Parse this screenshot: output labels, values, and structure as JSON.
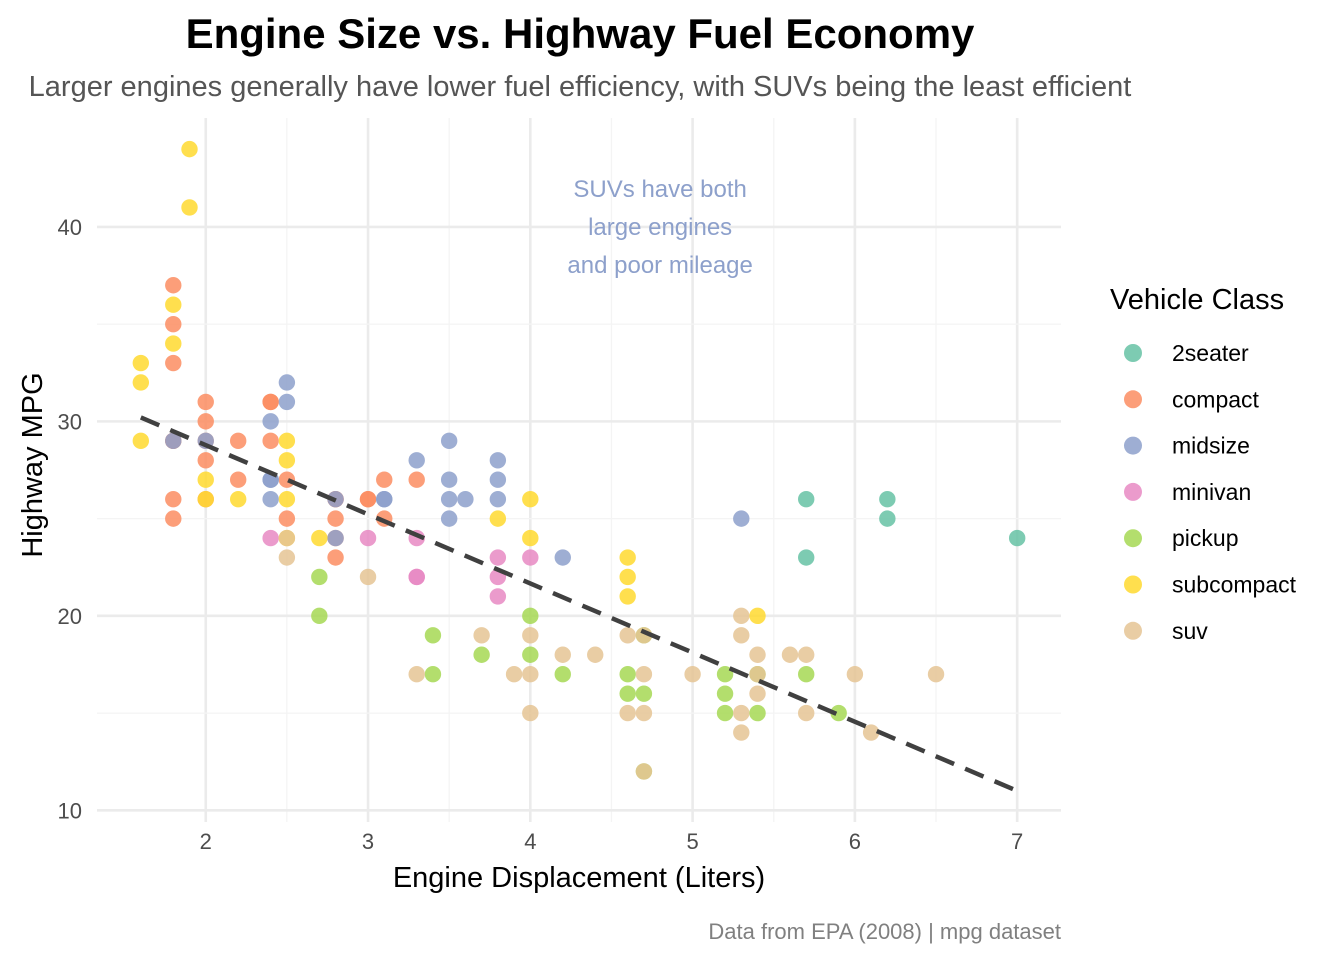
{
  "chart_data": {
    "type": "scatter",
    "title": "Engine Size vs. Highway Fuel Economy",
    "subtitle": "Larger engines generally have lower fuel efficiency, with SUVs being the least efficient",
    "xlabel": "Engine Displacement (Liters)",
    "ylabel": "Highway MPG",
    "caption": "Data from EPA (2008) | mpg dataset",
    "annotation": [
      "SUVs have both",
      "large engines",
      "and poor mileage"
    ],
    "annotation_position": {
      "x": 4.8,
      "y": 40
    },
    "xlim": [
      1.33,
      7.27
    ],
    "ylim": [
      9.4,
      45.6
    ],
    "xticks": [
      2,
      3,
      4,
      5,
      6,
      7
    ],
    "yticks": [
      10,
      20,
      30,
      40
    ],
    "grid": true,
    "legend_title": "Vehicle Class",
    "legend_position": "right",
    "trend_line": {
      "style": "dashed",
      "color": "#404040",
      "x": [
        1.6,
        7.0
      ],
      "y": [
        30.2,
        11.0
      ]
    },
    "series": [
      {
        "name": "2seater",
        "color": "#66c2a5",
        "points": [
          [
            5.7,
            26
          ],
          [
            5.7,
            23
          ],
          [
            6.2,
            26
          ],
          [
            6.2,
            25
          ],
          [
            7.0,
            24
          ]
        ]
      },
      {
        "name": "compact",
        "color": "#fc8d62",
        "points": [
          [
            1.8,
            29
          ],
          [
            1.8,
            29
          ],
          [
            2.0,
            31
          ],
          [
            2.0,
            30
          ],
          [
            2.8,
            26
          ],
          [
            2.8,
            26
          ],
          [
            3.1,
            27
          ],
          [
            1.8,
            26
          ],
          [
            1.8,
            25
          ],
          [
            2.0,
            28
          ],
          [
            2.0,
            26
          ],
          [
            2.8,
            25
          ],
          [
            2.8,
            24
          ],
          [
            3.1,
            25
          ],
          [
            2.2,
            27
          ],
          [
            2.2,
            29
          ],
          [
            2.4,
            31
          ],
          [
            2.4,
            31
          ],
          [
            3.0,
            26
          ],
          [
            3.3,
            27
          ],
          [
            1.8,
            37
          ],
          [
            1.8,
            35
          ],
          [
            1.8,
            33
          ],
          [
            2.0,
            29
          ],
          [
            2.4,
            29
          ],
          [
            2.5,
            27
          ],
          [
            2.5,
            25
          ],
          [
            2.8,
            23
          ],
          [
            3.0,
            26
          ]
        ]
      },
      {
        "name": "midsize",
        "color": "#8da0cb",
        "points": [
          [
            2.8,
            26
          ],
          [
            3.1,
            26
          ],
          [
            4.2,
            23
          ],
          [
            2.4,
            27
          ],
          [
            2.4,
            30
          ],
          [
            3.1,
            26
          ],
          [
            3.5,
            29
          ],
          [
            3.6,
            26
          ],
          [
            2.4,
            26
          ],
          [
            2.4,
            27
          ],
          [
            2.5,
            32
          ],
          [
            2.5,
            31
          ],
          [
            3.3,
            28
          ],
          [
            3.5,
            27
          ],
          [
            3.5,
            26
          ],
          [
            3.8,
            28
          ],
          [
            3.8,
            26
          ],
          [
            5.3,
            25
          ],
          [
            2.0,
            29
          ],
          [
            2.8,
            24
          ],
          [
            3.5,
            25
          ],
          [
            1.8,
            29
          ],
          [
            3.8,
            27
          ]
        ]
      },
      {
        "name": "minivan",
        "color": "#e78ac3",
        "points": [
          [
            2.4,
            24
          ],
          [
            3.0,
            24
          ],
          [
            3.3,
            22
          ],
          [
            3.3,
            24
          ],
          [
            3.8,
            22
          ],
          [
            3.8,
            23
          ],
          [
            3.8,
            21
          ],
          [
            4.0,
            23
          ],
          [
            3.3,
            22
          ]
        ]
      },
      {
        "name": "pickup",
        "color": "#a6d854",
        "points": [
          [
            2.7,
            20
          ],
          [
            2.7,
            22
          ],
          [
            3.4,
            17
          ],
          [
            3.4,
            19
          ],
          [
            4.0,
            18
          ],
          [
            4.0,
            20
          ],
          [
            4.2,
            17
          ],
          [
            4.6,
            17
          ],
          [
            4.6,
            16
          ],
          [
            4.7,
            16
          ],
          [
            4.7,
            19
          ],
          [
            5.2,
            16
          ],
          [
            5.2,
            15
          ],
          [
            5.2,
            17
          ],
          [
            5.4,
            15
          ],
          [
            5.4,
            17
          ],
          [
            5.7,
            17
          ],
          [
            5.9,
            15
          ],
          [
            4.7,
            12
          ],
          [
            3.7,
            18
          ]
        ]
      },
      {
        "name": "subcompact",
        "color": "#ffd92f",
        "points": [
          [
            1.6,
            33
          ],
          [
            1.6,
            32
          ],
          [
            1.6,
            29
          ],
          [
            1.8,
            34
          ],
          [
            1.8,
            36
          ],
          [
            1.9,
            44
          ],
          [
            1.9,
            41
          ],
          [
            2.0,
            27
          ],
          [
            2.0,
            26
          ],
          [
            2.2,
            26
          ],
          [
            2.5,
            29
          ],
          [
            2.5,
            28
          ],
          [
            2.5,
            26
          ],
          [
            2.5,
            24
          ],
          [
            2.7,
            24
          ],
          [
            3.8,
            25
          ],
          [
            4.0,
            26
          ],
          [
            4.0,
            24
          ],
          [
            4.6,
            23
          ],
          [
            4.6,
            22
          ],
          [
            4.6,
            21
          ],
          [
            5.4,
            20
          ]
        ]
      },
      {
        "name": "suv",
        "color": "#e5c494",
        "points": [
          [
            2.5,
            23
          ],
          [
            2.5,
            24
          ],
          [
            3.0,
            22
          ],
          [
            3.3,
            17
          ],
          [
            3.7,
            19
          ],
          [
            3.9,
            17
          ],
          [
            4.0,
            19
          ],
          [
            4.0,
            15
          ],
          [
            4.0,
            17
          ],
          [
            4.2,
            18
          ],
          [
            4.4,
            18
          ],
          [
            4.6,
            19
          ],
          [
            4.6,
            15
          ],
          [
            4.7,
            19
          ],
          [
            4.7,
            17
          ],
          [
            4.7,
            15
          ],
          [
            5.0,
            17
          ],
          [
            5.3,
            20
          ],
          [
            5.3,
            19
          ],
          [
            5.3,
            15
          ],
          [
            5.3,
            14
          ],
          [
            5.4,
            18
          ],
          [
            5.4,
            16
          ],
          [
            5.4,
            17
          ],
          [
            5.6,
            18
          ],
          [
            5.7,
            18
          ],
          [
            5.7,
            15
          ],
          [
            6.0,
            17
          ],
          [
            6.1,
            14
          ],
          [
            6.5,
            17
          ],
          [
            4.7,
            12
          ]
        ]
      }
    ]
  }
}
